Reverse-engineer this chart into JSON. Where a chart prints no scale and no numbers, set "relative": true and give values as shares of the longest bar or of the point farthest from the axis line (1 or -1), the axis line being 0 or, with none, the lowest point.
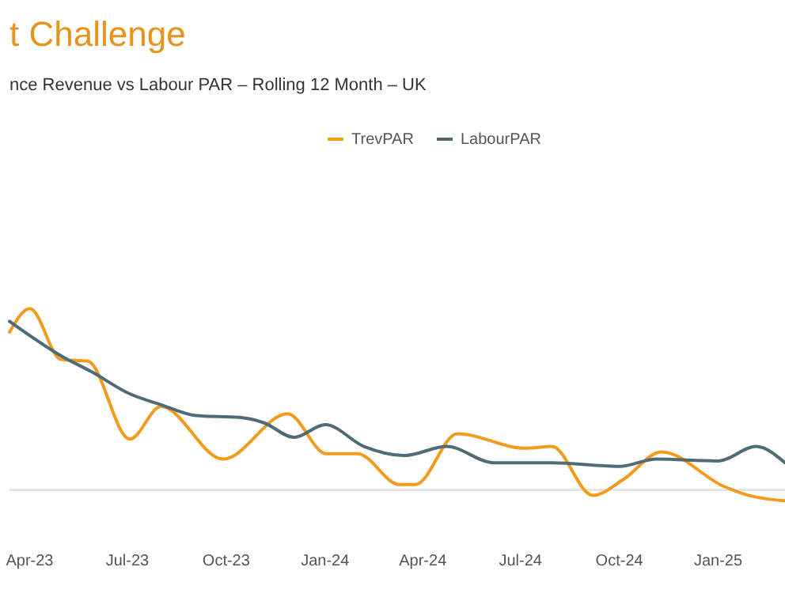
{
  "chart_data": {
    "type": "line",
    "title": "t Challenge",
    "subtitle": "nce Revenue vs Labour PAR – Rolling 12 Month – UK",
    "relative": true,
    "legend": "top",
    "tick_labels": "x",
    "grid": false,
    "xlim": [
      "2023-03-14",
      "2025-03-05"
    ],
    "xticks": [
      {
        "value": "2023-04-01",
        "label": "Apr-23"
      },
      {
        "value": "2023-07-01",
        "label": "Jul-23"
      },
      {
        "value": "2023-10-01",
        "label": "Oct-23"
      },
      {
        "value": "2024-01-01",
        "label": "Jan-24"
      },
      {
        "value": "2024-04-01",
        "label": "Apr-24"
      },
      {
        "value": "2024-07-01",
        "label": "Jul-24"
      },
      {
        "value": "2024-10-01",
        "label": "Oct-24"
      },
      {
        "value": "2025-01-01",
        "label": "Jan-25"
      }
    ],
    "series": [
      {
        "name": "TrevPAR",
        "color": "#f29b1d",
        "x": [
          "2023-03-14",
          "2023-04-02",
          "2023-05-01",
          "2023-05-26",
          "2023-07-04",
          "2023-08-02",
          "2023-09-29",
          "2023-11-28",
          "2024-01-03",
          "2024-02-01",
          "2024-03-11",
          "2024-03-26",
          "2024-05-04",
          "2024-07-06",
          "2024-07-31",
          "2024-09-07",
          "2024-10-06",
          "2024-11-10",
          "2025-01-07",
          "2025-01-30",
          "2025-03-05"
        ],
        "values": [
          0.87,
          1,
          0.72,
          0.71,
          0.28,
          0.46,
          0.17,
          0.42,
          0.2,
          0.2,
          0.03,
          0.03,
          0.31,
          0.23,
          0.24,
          -0.03,
          0.06,
          0.21,
          0.02,
          -0.03,
          -0.06
        ]
      },
      {
        "name": "LabourPAR",
        "color": "#4f6b78",
        "x": [
          "2023-03-14",
          "2023-05-01",
          "2023-05-30",
          "2023-07-04",
          "2023-08-02",
          "2023-09-04",
          "2023-10-14",
          "2023-11-06",
          "2023-12-04",
          "2024-01-02",
          "2024-02-07",
          "2024-03-16",
          "2024-04-24",
          "2024-06-07",
          "2024-07-31",
          "2024-10-02",
          "2024-11-05",
          "2025-01-02",
          "2025-02-06",
          "2025-03-05"
        ],
        "values": [
          0.93,
          0.74,
          0.65,
          0.53,
          0.47,
          0.41,
          0.4,
          0.37,
          0.29,
          0.36,
          0.24,
          0.19,
          0.24,
          0.15,
          0.15,
          0.13,
          0.17,
          0.16,
          0.24,
          0.15
        ]
      }
    ]
  }
}
